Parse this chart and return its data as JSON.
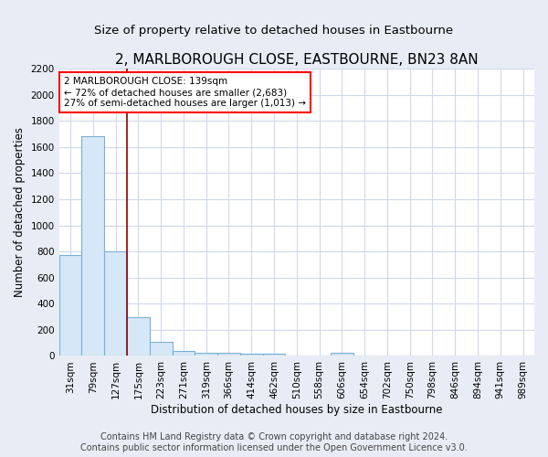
{
  "title": "2, MARLBOROUGH CLOSE, EASTBOURNE, BN23 8AN",
  "subtitle": "Size of property relative to detached houses in Eastbourne",
  "xlabel": "Distribution of detached houses by size in Eastbourne",
  "ylabel": "Number of detached properties",
  "bin_labels": [
    "31sqm",
    "79sqm",
    "127sqm",
    "175sqm",
    "223sqm",
    "271sqm",
    "319sqm",
    "366sqm",
    "414sqm",
    "462sqm",
    "510sqm",
    "558sqm",
    "606sqm",
    "654sqm",
    "702sqm",
    "750sqm",
    "798sqm",
    "846sqm",
    "894sqm",
    "941sqm",
    "989sqm"
  ],
  "bar_heights": [
    770,
    1680,
    800,
    295,
    110,
    40,
    25,
    22,
    18,
    15,
    0,
    0,
    22,
    0,
    0,
    0,
    0,
    0,
    0,
    0,
    0
  ],
  "bar_color": "#d6e8f7",
  "bar_edge_color": "#7ab0d4",
  "ylim": [
    0,
    2200
  ],
  "red_line_x": 2.5,
  "annotation_box_text": "2 MARLBOROUGH CLOSE: 139sqm\n← 72% of detached houses are smaller (2,683)\n27% of semi-detached houses are larger (1,013) →",
  "footer_line1": "Contains HM Land Registry data © Crown copyright and database right 2024.",
  "footer_line2": "Contains public sector information licensed under the Open Government Licence v3.0.",
  "background_color": "#e8edf5",
  "plot_background_color": "#ffffff",
  "grid_color": "#d0d8e8",
  "title_fontsize": 11,
  "subtitle_fontsize": 9.5,
  "axis_label_fontsize": 8.5,
  "tick_fontsize": 7.5,
  "footer_fontsize": 7
}
